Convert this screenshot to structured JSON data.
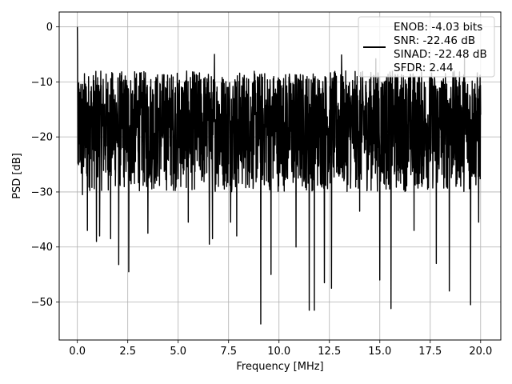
{
  "chart_data": {
    "type": "line",
    "xlabel": "Frequency [MHz]",
    "ylabel": "PSD [dB]",
    "xlim": [
      -0.9,
      21.0
    ],
    "ylim": [
      -56.9,
      2.7
    ],
    "x_ticks": [
      0.0,
      2.5,
      5.0,
      7.5,
      10.0,
      12.5,
      15.0,
      17.5,
      20.0
    ],
    "x_tick_labels": [
      "0.0",
      "2.5",
      "5.0",
      "7.5",
      "10.0",
      "12.5",
      "15.0",
      "17.5",
      "20.0"
    ],
    "y_ticks": [
      0,
      -10,
      -20,
      -30,
      -40,
      -50
    ],
    "y_tick_labels": [
      "0",
      "−10",
      "−20",
      "−30",
      "−40",
      "−50"
    ],
    "grid": true,
    "legend_placement": "upper-right",
    "legend": {
      "lines": [
        "ENOB: -4.03 bits",
        "SNR: -22.46 dB",
        "SINAD: -22.48 dB",
        "SFDR: 2.44"
      ]
    },
    "series": [
      {
        "color": "#000000",
        "x_range": [
          0.0,
          20.0
        ],
        "num_points": 2048,
        "noise_floor_db": -19.0,
        "noise_band_db": [
          -30.0,
          -8.0
        ],
        "peaks": [
          {
            "x": 0.0,
            "y": 0.0
          },
          {
            "x": 0.02,
            "y": -3.5
          },
          {
            "x": 3.5,
            "y": -5.5
          },
          {
            "x": 6.8,
            "y": -5.0
          },
          {
            "x": 13.1,
            "y": -5.1
          },
          {
            "x": 14.8,
            "y": -5.8
          },
          {
            "x": 19.2,
            "y": -5.4
          }
        ],
        "dips": [
          {
            "x": 0.25,
            "y": -30.5
          },
          {
            "x": 0.5,
            "y": -37.0
          },
          {
            "x": 0.95,
            "y": -39.0
          },
          {
            "x": 1.1,
            "y": -38.0
          },
          {
            "x": 1.65,
            "y": -38.5
          },
          {
            "x": 2.05,
            "y": -43.2
          },
          {
            "x": 2.55,
            "y": -44.5
          },
          {
            "x": 3.5,
            "y": -37.5
          },
          {
            "x": 5.5,
            "y": -35.5
          },
          {
            "x": 6.55,
            "y": -39.5
          },
          {
            "x": 6.7,
            "y": -38.5
          },
          {
            "x": 7.6,
            "y": -35.5
          },
          {
            "x": 7.9,
            "y": -38.0
          },
          {
            "x": 9.1,
            "y": -54.0
          },
          {
            "x": 9.6,
            "y": -45.0
          },
          {
            "x": 10.85,
            "y": -40.0
          },
          {
            "x": 11.5,
            "y": -51.5
          },
          {
            "x": 11.75,
            "y": -51.5
          },
          {
            "x": 12.25,
            "y": -46.5
          },
          {
            "x": 12.6,
            "y": -47.5
          },
          {
            "x": 14.0,
            "y": -33.5
          },
          {
            "x": 15.0,
            "y": -46.0
          },
          {
            "x": 15.55,
            "y": -51.2
          },
          {
            "x": 16.7,
            "y": -37.0
          },
          {
            "x": 17.8,
            "y": -43.0
          },
          {
            "x": 18.45,
            "y": -48.0
          },
          {
            "x": 19.5,
            "y": -50.5
          },
          {
            "x": 19.9,
            "y": -35.5
          }
        ]
      }
    ]
  }
}
